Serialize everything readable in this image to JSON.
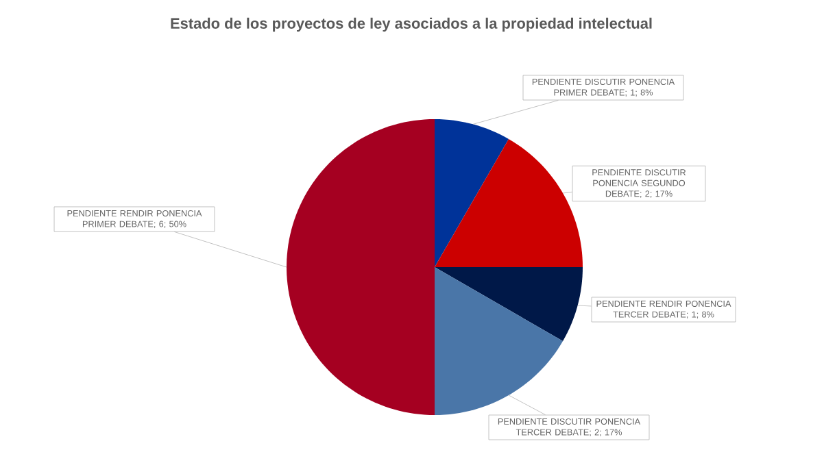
{
  "chart_data": {
    "type": "pie",
    "title": "Estado de los proyectos de ley asociados a la propiedad intelectual",
    "categories": [
      "PENDIENTE DISCUTIR PONENCIA PRIMER DEBATE",
      "PENDIENTE DISCUTIR PONENCIA SEGUNDO DEBATE",
      "PENDIENTE RENDIR PONENCIA TERCER DEBATE",
      "PENDIENTE DISCUTIR PONENCIA TERCER DEBATE",
      "PENDIENTE RENDIR PONENCIA PRIMER DEBATE"
    ],
    "values": [
      1,
      2,
      1,
      2,
      6
    ],
    "value_labels": [
      "; 1; 8%",
      "; 2; 17%",
      "; 1; 8%",
      "; 2; 17%",
      "; 6; 50%"
    ],
    "colors": [
      "#003399",
      "#cc0000",
      "#001848",
      "#4a76a8",
      "#a50021"
    ]
  }
}
